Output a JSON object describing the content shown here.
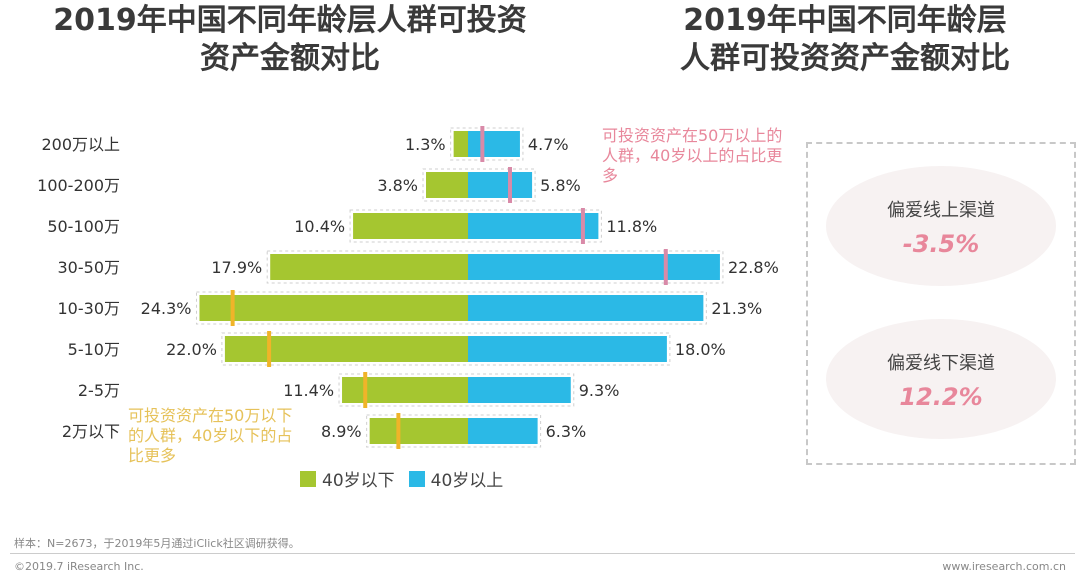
{
  "titles": {
    "left_line1": "2019年中国不同年龄层人群可投资",
    "left_line2": "资产金额对比",
    "right_line1": "2019年中国不同年龄层",
    "right_line2": "人群可投资资产金额对比"
  },
  "chart_data": {
    "type": "bar",
    "orientation": "horizontal-diverging",
    "categories": [
      "200万以上",
      "100-200万",
      "50-100万",
      "30-50万",
      "10-30万",
      "5-10万",
      "2-5万",
      "2万以下"
    ],
    "series": [
      {
        "name": "40岁以下",
        "values": [
          1.3,
          3.8,
          10.4,
          17.9,
          24.3,
          22.0,
          11.4,
          8.9
        ],
        "labels": [
          "1.3%",
          "3.8%",
          "10.4%",
          "17.9%",
          "24.3%",
          "22.0%",
          "11.4%",
          "8.9%"
        ],
        "color": "#a5c630",
        "side": "left"
      },
      {
        "name": "40岁以上",
        "values": [
          4.7,
          5.8,
          11.8,
          22.8,
          21.3,
          18.0,
          9.3,
          6.3
        ],
        "labels": [
          "4.7%",
          "5.8%",
          "11.8%",
          "22.8%",
          "21.3%",
          "18.0%",
          "9.3%",
          "6.3%"
        ],
        "color": "#2bb9e6",
        "side": "right"
      }
    ],
    "highlight_color_older": "#d98aa8",
    "highlight_color_younger": "#f0b429",
    "legend_position": "bottom",
    "grid": false
  },
  "notes": {
    "top": "可投资资产在50万以上的人群，40岁以上的占比更多",
    "bottom": "可投资资产在50万以下的人群，40岁以下的占比更多"
  },
  "channel": {
    "online_label": "偏爱线上渠道",
    "online_value": "-3.5%",
    "offline_label": "偏爱线下渠道",
    "offline_value": "12.2%"
  },
  "source": "样本：N=2673，于2019年5月通过iClick社区调研获得。",
  "copyright": "©2019.7 iResearch Inc.",
  "site": "www.iresearch.com.cn"
}
